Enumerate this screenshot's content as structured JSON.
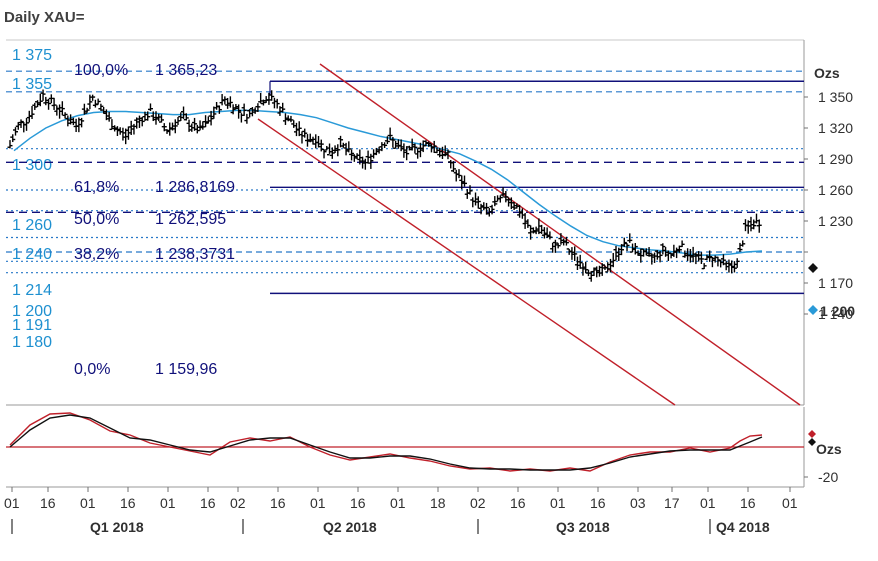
{
  "title": "Daily XAU=",
  "chart_data": {
    "type": "line",
    "title": "Daily XAU=",
    "unit_label": "Ozs",
    "price_axis": {
      "ylim": [
        1125,
        1385
      ],
      "ticks": [
        1350,
        1320,
        1290,
        1260,
        1230,
        1200,
        1170,
        1140
      ],
      "tick_labels": [
        "1 350",
        "1 320",
        "1 290",
        "1 260",
        "1 230",
        "1 200",
        "1 170",
        "1 140"
      ]
    },
    "last_price_label": "1 200",
    "oscillator_axis": {
      "unit_label": "Ozs",
      "ticks": [
        -20
      ],
      "tick_labels": [
        "-20"
      ]
    },
    "x_tick_labels": [
      "01",
      "16",
      "01",
      "16",
      "01",
      "16",
      "02",
      "16",
      "01",
      "16",
      "01",
      "18",
      "02",
      "16",
      "01",
      "16",
      "03",
      "17",
      "01",
      "16",
      "01"
    ],
    "quarter_labels": [
      "Q1 2018",
      "Q2 2018",
      "Q3 2018",
      "Q4 2018"
    ],
    "horizontal_levels": [
      {
        "value": 1375,
        "label": "1 375",
        "style": "dashed-blue"
      },
      {
        "value": 1355,
        "label": "1 355",
        "style": "dashed-blue"
      },
      {
        "value": 1300,
        "label": "1 300",
        "style": "dotted-blue"
      },
      {
        "value": 1260,
        "label": "1 260",
        "style": "dotted-blue"
      },
      {
        "value": 1240,
        "label": "1 240",
        "style": "dotted-blue"
      },
      {
        "value": 1214,
        "label": "1 214",
        "style": "dotted-blue"
      },
      {
        "value": 1200,
        "label": "1 200",
        "style": "dashed-blue"
      },
      {
        "value": 1191,
        "label": "1 191",
        "style": "dotted-blue"
      },
      {
        "value": 1180,
        "label": "1 180",
        "style": "dotted-blue"
      }
    ],
    "fibonacci": [
      {
        "pct": "100,0%",
        "value": 1365.23,
        "label": "1 365,23"
      },
      {
        "pct": "61,8%",
        "value": 1286.8169,
        "label": "1 286,8169"
      },
      {
        "pct": "50,0%",
        "value": 1262.595,
        "label": "1 262,595"
      },
      {
        "pct": "38,2%",
        "value": 1238.3731,
        "label": "1 238,3731"
      },
      {
        "pct": "0,0%",
        "value": 1159.96,
        "label": "1 159,96"
      }
    ],
    "price_close_approx": [
      1303,
      1322,
      1328,
      1340,
      1352,
      1345,
      1338,
      1330,
      1322,
      1335,
      1350,
      1340,
      1328,
      1318,
      1312,
      1322,
      1330,
      1335,
      1328,
      1318,
      1325,
      1330,
      1322,
      1318,
      1326,
      1338,
      1348,
      1342,
      1335,
      1333,
      1344,
      1350,
      1346,
      1336,
      1326,
      1316,
      1310,
      1310,
      1300,
      1298,
      1305,
      1296,
      1290,
      1286,
      1295,
      1305,
      1310,
      1302,
      1296,
      1299,
      1303,
      1304,
      1298,
      1293,
      1275,
      1265,
      1252,
      1243,
      1238,
      1248,
      1255,
      1247,
      1236,
      1218,
      1225,
      1215,
      1205,
      1210,
      1198,
      1190,
      1183,
      1178,
      1182,
      1193,
      1205,
      1208,
      1200,
      1195,
      1195,
      1202,
      1197,
      1206,
      1199,
      1195,
      1190,
      1195,
      1190,
      1185,
      1189,
      1222,
      1228,
      1230
    ],
    "moving_average_approx": [
      1298,
      1310,
      1320,
      1327,
      1332,
      1335,
      1336,
      1336,
      1335,
      1334,
      1333,
      1333,
      1335,
      1336,
      1337,
      1337,
      1336,
      1335,
      1333,
      1330,
      1325,
      1320,
      1316,
      1312,
      1309,
      1306,
      1303,
      1299,
      1295,
      1288,
      1280,
      1270,
      1258,
      1246,
      1235,
      1225,
      1216,
      1210,
      1206,
      1204,
      1202,
      1201,
      1199,
      1197,
      1197,
      1198,
      1200,
      1201
    ],
    "channel_lines": [
      {
        "start": [
          "Apr 13",
          1330
        ],
        "end": [
          "Sep 30",
          1124
        ]
      },
      {
        "start": [
          "Apr 17",
          1365
        ],
        "end": [
          "Dec 31",
          1124
        ]
      }
    ]
  }
}
